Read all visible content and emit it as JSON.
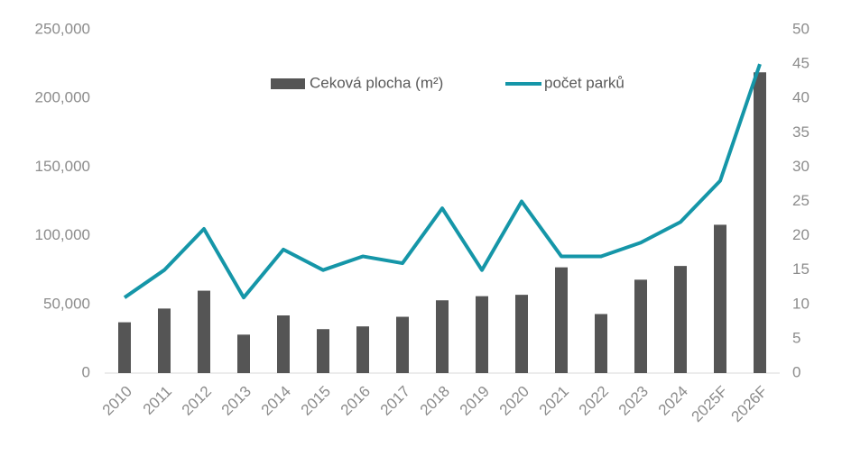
{
  "chart_data": {
    "type": "bar-line",
    "categories": [
      "2010",
      "2011",
      "2012",
      "2013",
      "2014",
      "2015",
      "2016",
      "2017",
      "2018",
      "2019",
      "2020",
      "2021",
      "2022",
      "2023",
      "2024",
      "2025F",
      "2026F"
    ],
    "series": [
      {
        "name": "Ceková plocha (m²)",
        "type": "bar",
        "color": "#555555",
        "values": [
          37000,
          47000,
          60000,
          28000,
          42000,
          32000,
          34000,
          41000,
          53000,
          56000,
          57000,
          77000,
          43000,
          68000,
          78000,
          108000,
          219000
        ]
      },
      {
        "name": "počet parků",
        "type": "line",
        "axis": "y2",
        "color": "#1596a8",
        "values": [
          11,
          15,
          21,
          11,
          18,
          15,
          17,
          16,
          24,
          15,
          25,
          17,
          17,
          19,
          22,
          28,
          45
        ]
      }
    ],
    "ylim": [
      0,
      250000
    ],
    "yticks": [
      0,
      {
        "value": 50000,
        "label": "50,000"
      },
      {
        "value": 100000,
        "label": "100,000"
      },
      {
        "value": 150000,
        "label": "150,000"
      },
      {
        "value": 200000,
        "label": "200,000"
      },
      {
        "value": 250000,
        "label": "250,000"
      }
    ],
    "y2lim": [
      0,
      50
    ],
    "y2ticks": [
      0,
      5,
      10,
      15,
      20,
      25,
      30,
      35,
      40,
      45,
      50
    ],
    "grid": false,
    "legend": "top"
  }
}
